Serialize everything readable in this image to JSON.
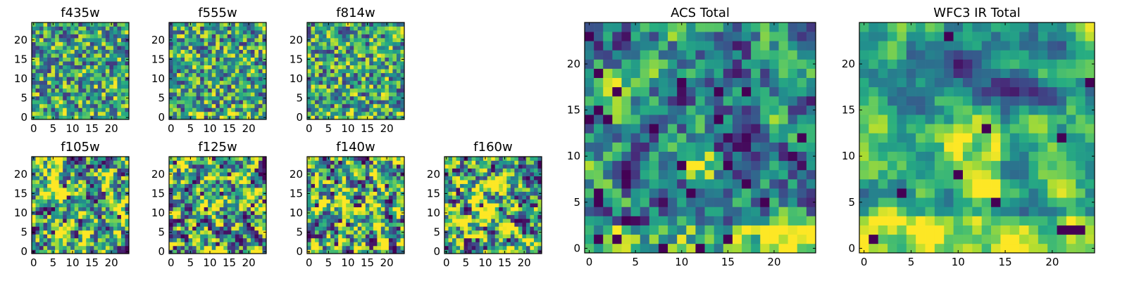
{
  "figure": {
    "background": "#ffffff",
    "colormap": "viridis"
  },
  "chart_data": [
    {
      "type": "heatmap",
      "title": "f435w",
      "grid_size": [
        25,
        25
      ],
      "xticks": [
        0,
        5,
        10,
        15,
        20
      ],
      "yticks": [
        0,
        5,
        10,
        15,
        20
      ],
      "xlim": [
        -0.5,
        24.5
      ],
      "ylim": [
        -0.5,
        24.5
      ],
      "value_range": [
        0,
        1
      ],
      "texture": "noise",
      "seed": 11
    },
    {
      "type": "heatmap",
      "title": "f555w",
      "grid_size": [
        25,
        25
      ],
      "xticks": [
        0,
        5,
        10,
        15,
        20
      ],
      "yticks": [
        0,
        5,
        10,
        15,
        20
      ],
      "xlim": [
        -0.5,
        24.5
      ],
      "ylim": [
        -0.5,
        24.5
      ],
      "value_range": [
        0,
        1
      ],
      "texture": "noise",
      "seed": 23
    },
    {
      "type": "heatmap",
      "title": "f814w",
      "grid_size": [
        25,
        25
      ],
      "xticks": [
        0,
        5,
        10,
        15,
        20
      ],
      "yticks": [
        0,
        5,
        10,
        15,
        20
      ],
      "xlim": [
        -0.5,
        24.5
      ],
      "ylim": [
        -0.5,
        24.5
      ],
      "value_range": [
        0,
        1
      ],
      "texture": "noise",
      "seed": 37
    },
    {
      "type": "heatmap",
      "title": "f105w",
      "grid_size": [
        25,
        25
      ],
      "xticks": [
        0,
        5,
        10,
        15,
        20
      ],
      "yticks": [
        0,
        5,
        10,
        15,
        20
      ],
      "xlim": [
        -0.5,
        24.5
      ],
      "ylim": [
        -0.5,
        24.5
      ],
      "value_range": [
        0,
        1
      ],
      "texture": "smooth",
      "seed": 41
    },
    {
      "type": "heatmap",
      "title": "f125w",
      "grid_size": [
        25,
        25
      ],
      "xticks": [
        0,
        5,
        10,
        15,
        20
      ],
      "yticks": [
        0,
        5,
        10,
        15,
        20
      ],
      "xlim": [
        -0.5,
        24.5
      ],
      "ylim": [
        -0.5,
        24.5
      ],
      "value_range": [
        0,
        1
      ],
      "texture": "smooth",
      "seed": 53
    },
    {
      "type": "heatmap",
      "title": "f140w",
      "grid_size": [
        25,
        25
      ],
      "xticks": [
        0,
        5,
        10,
        15,
        20
      ],
      "yticks": [
        0,
        5,
        10,
        15,
        20
      ],
      "xlim": [
        -0.5,
        24.5
      ],
      "ylim": [
        -0.5,
        24.5
      ],
      "value_range": [
        0,
        1
      ],
      "texture": "smooth",
      "seed": 67
    },
    {
      "type": "heatmap",
      "title": "f160w",
      "grid_size": [
        25,
        25
      ],
      "xticks": [
        0,
        5,
        10,
        15,
        20
      ],
      "yticks": [
        0,
        5,
        10,
        15,
        20
      ],
      "xlim": [
        -0.5,
        24.5
      ],
      "ylim": [
        -0.5,
        24.5
      ],
      "value_range": [
        0,
        1
      ],
      "texture": "smooth",
      "seed": 71
    },
    {
      "type": "heatmap",
      "title": "ACS Total",
      "grid_size": [
        25,
        25
      ],
      "xticks": [
        0,
        5,
        10,
        15,
        20
      ],
      "yticks": [
        0,
        5,
        10,
        15,
        20
      ],
      "xlim": [
        -0.5,
        24.5
      ],
      "ylim": [
        -0.5,
        24.5
      ],
      "value_range": [
        0,
        1
      ],
      "texture": "acs",
      "seed": 83
    },
    {
      "type": "heatmap",
      "title": "WFC3 IR Total",
      "grid_size": [
        25,
        25
      ],
      "xticks": [
        0,
        5,
        10,
        15,
        20
      ],
      "yticks": [
        0,
        5,
        10,
        15,
        20
      ],
      "xlim": [
        -0.5,
        24.5
      ],
      "ylim": [
        -0.5,
        24.5
      ],
      "value_range": [
        0,
        1
      ],
      "texture": "ir",
      "seed": 97
    }
  ]
}
